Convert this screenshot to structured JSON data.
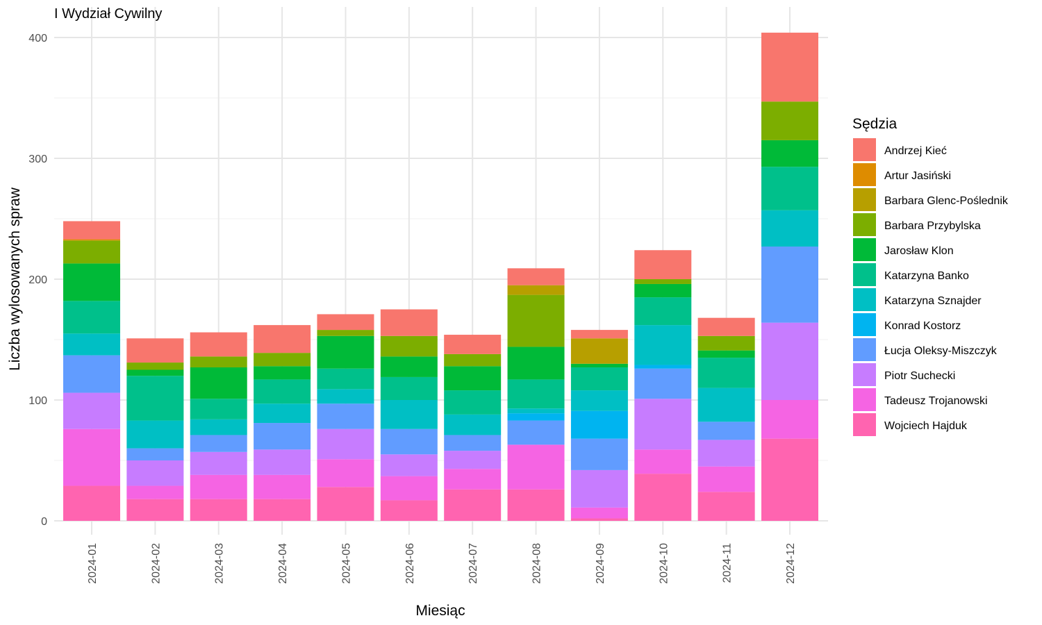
{
  "chart_data": {
    "type": "bar",
    "stacked": true,
    "title": "I Wydział Cywilny",
    "xlabel": "Miesiąc",
    "ylabel": "Liczba wylosowanych spraw",
    "ylim": [
      -12,
      410
    ],
    "yticks": [
      0,
      100,
      200,
      300,
      400
    ],
    "grid": true,
    "legend": {
      "title": "Sędzia",
      "position": "right"
    },
    "categories": [
      "2024-01",
      "2024-02",
      "2024-03",
      "2024-04",
      "2024-05",
      "2024-06",
      "2024-07",
      "2024-08",
      "2024-09",
      "2024-10",
      "2024-11",
      "2024-12"
    ],
    "series": [
      {
        "name": "Andrzej Kieć",
        "color": "#F8766D",
        "values": [
          15,
          20,
          20,
          23,
          13,
          22,
          16,
          14,
          7,
          24,
          15,
          57
        ]
      },
      {
        "name": "Artur Jasiński",
        "color": "#DE8C00",
        "values": [
          1,
          0,
          0,
          0,
          0,
          0,
          0,
          0,
          0,
          0,
          0,
          0
        ]
      },
      {
        "name": "Barbara Glenc-Poślednik",
        "color": "#B79F00",
        "values": [
          0,
          0,
          0,
          0,
          0,
          0,
          0,
          8,
          21,
          0,
          0,
          0
        ]
      },
      {
        "name": "Barbara Przybylska",
        "color": "#7CAE00",
        "values": [
          19,
          6,
          9,
          11,
          5,
          17,
          10,
          43,
          0,
          4,
          12,
          32
        ]
      },
      {
        "name": "Jarosław Klon",
        "color": "#00BA38",
        "values": [
          31,
          5,
          26,
          11,
          27,
          17,
          20,
          27,
          3,
          11,
          6,
          22
        ]
      },
      {
        "name": "Katarzyna Banko",
        "color": "#00C08B",
        "values": [
          27,
          37,
          17,
          20,
          17,
          19,
          20,
          24,
          19,
          23,
          25,
          36
        ]
      },
      {
        "name": "Katarzyna Sznajder",
        "color": "#00BFC4",
        "values": [
          18,
          23,
          13,
          16,
          12,
          24,
          17,
          4,
          17,
          33,
          28,
          30
        ]
      },
      {
        "name": "Konrad Kostorz",
        "color": "#00B4F0",
        "values": [
          0,
          0,
          0,
          0,
          0,
          0,
          0,
          6,
          23,
          3,
          0,
          0
        ]
      },
      {
        "name": "Łucja Oleksy-Miszczyk",
        "color": "#619CFF",
        "values": [
          31,
          10,
          14,
          22,
          21,
          21,
          13,
          20,
          26,
          25,
          15,
          63
        ]
      },
      {
        "name": "Piotr Suchecki",
        "color": "#C77CFF",
        "values": [
          30,
          21,
          19,
          21,
          25,
          18,
          15,
          0,
          31,
          42,
          22,
          64
        ]
      },
      {
        "name": "Tadeusz Trojanowski",
        "color": "#F564E3",
        "values": [
          47,
          11,
          20,
          20,
          23,
          20,
          17,
          37,
          9,
          20,
          21,
          32
        ]
      },
      {
        "name": "Wojciech Hajduk",
        "color": "#FF64B0",
        "values": [
          29,
          18,
          18,
          18,
          28,
          17,
          26,
          26,
          2,
          39,
          24,
          68
        ]
      }
    ]
  }
}
